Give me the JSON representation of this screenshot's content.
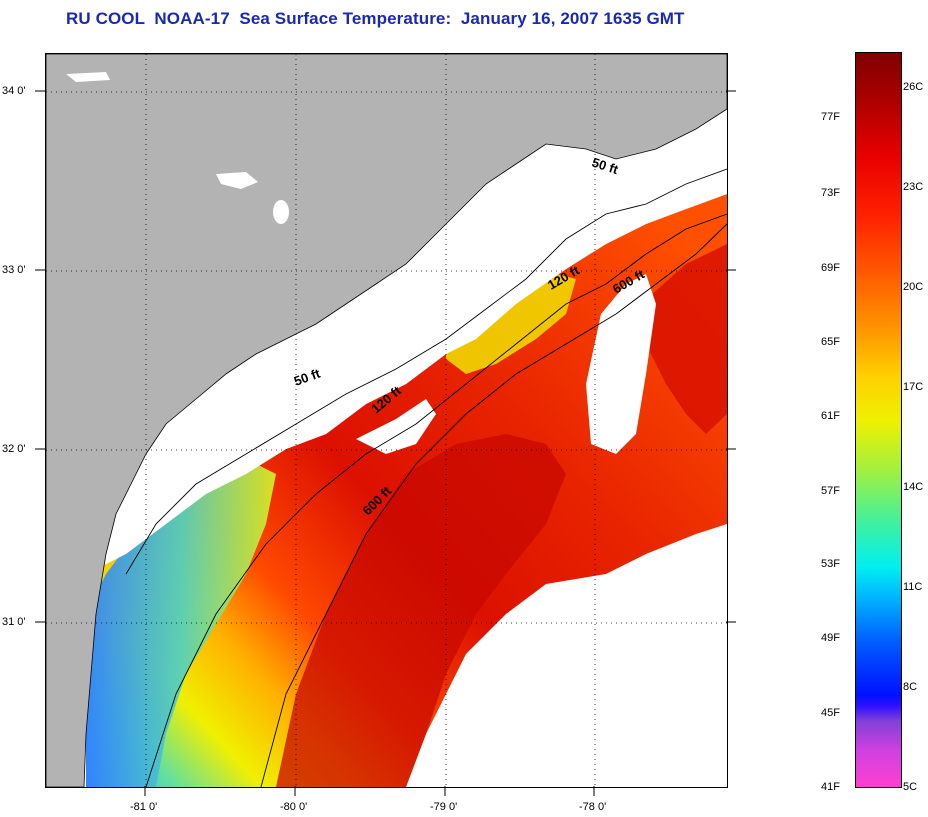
{
  "title": "RU COOL  NOAA-17  Sea Surface Temperature:  January 16, 2007 1635 GMT",
  "latitude_labels": [
    "34 0'",
    "33 0'",
    "32 0'",
    "31 0'"
  ],
  "longitude_labels": [
    "-81 0'",
    "-80 0'",
    "-79 0'",
    "-78 0'"
  ],
  "contour_labels": {
    "shelf_50_north": "50 ft",
    "shelf_50_south": "50 ft",
    "shelf_120_north": "120 ft",
    "shelf_120_south": "120 ft",
    "shelf_600_north": "600 ft",
    "shelf_600_south": "600 ft"
  },
  "colorbar": {
    "fahrenheit": [
      "77F",
      "73F",
      "69F",
      "65F",
      "61F",
      "57F",
      "53F",
      "49F",
      "45F",
      "41F"
    ],
    "celsius": [
      "26C",
      "23C",
      "20C",
      "17C",
      "14C",
      "11C",
      "8C",
      "5C"
    ]
  },
  "colors": {
    "land": "#b3b3b3",
    "no_data": "#ffffff",
    "title": "#1a2ab0",
    "sst_warm": "#e01400",
    "sst_hot": "#c00000",
    "sst_mid": "#ff7a00",
    "sst_cool": "#f0f000",
    "sst_cold": "#00b8ff"
  }
}
